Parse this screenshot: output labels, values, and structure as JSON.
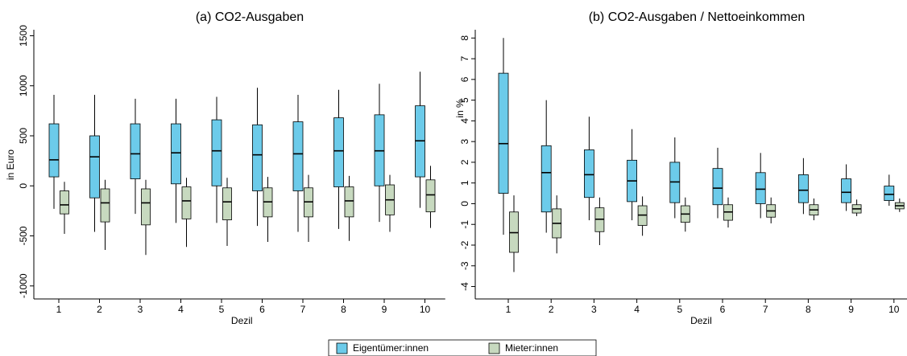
{
  "legend": {
    "entries": [
      {
        "name": "Eigentümer:innen",
        "color": "#6ccbea"
      },
      {
        "name": "Mieter:innen",
        "color": "#c7d9bf"
      }
    ]
  },
  "chart_data": [
    {
      "type": "box",
      "title": "(a) CO2-Ausgaben",
      "xlabel": "Dezil",
      "ylabel": "in Euro",
      "categories": [
        "1",
        "2",
        "3",
        "4",
        "5",
        "6",
        "7",
        "8",
        "9",
        "10"
      ],
      "ylim": [
        -1130,
        1560
      ],
      "yticks": [
        -1000,
        -500,
        0,
        500,
        1000,
        1500
      ],
      "series": [
        {
          "whislo": [
            -230,
            -460,
            -280,
            -370,
            -370,
            -400,
            -460,
            -430,
            -360,
            -220
          ],
          "q1": [
            90,
            -120,
            70,
            20,
            0,
            -50,
            -50,
            -10,
            0,
            90
          ],
          "med": [
            260,
            290,
            320,
            330,
            350,
            310,
            320,
            350,
            350,
            450
          ],
          "q3": [
            620,
            500,
            620,
            620,
            660,
            610,
            640,
            680,
            710,
            800
          ],
          "whishi": [
            910,
            910,
            870,
            870,
            890,
            980,
            910,
            960,
            1020,
            1140
          ]
        },
        {
          "whislo": [
            -480,
            -640,
            -690,
            -610,
            -600,
            -560,
            -560,
            -550,
            -460,
            -420
          ],
          "q1": [
            -280,
            -360,
            -390,
            -330,
            -340,
            -310,
            -310,
            -310,
            -290,
            -260
          ],
          "med": [
            -190,
            -170,
            -170,
            -150,
            -160,
            -160,
            -160,
            -150,
            -140,
            -90
          ],
          "q3": [
            -50,
            -30,
            -30,
            -10,
            -20,
            -20,
            -20,
            -10,
            10,
            60
          ],
          "whishi": [
            40,
            60,
            60,
            80,
            80,
            90,
            110,
            100,
            110,
            200
          ]
        }
      ]
    },
    {
      "type": "box",
      "title": "(b) CO2-Ausgaben / Nettoeinkommen",
      "xlabel": "Dezil",
      "ylabel": "in %",
      "categories": [
        "1",
        "2",
        "3",
        "4",
        "5",
        "6",
        "7",
        "8",
        "9",
        "10"
      ],
      "ylim": [
        -4.6,
        8.4
      ],
      "yticks": [
        -4,
        -3,
        -2,
        -1,
        0,
        1,
        2,
        3,
        4,
        5,
        6,
        7,
        8
      ],
      "series": [
        {
          "whislo": [
            -1.5,
            -1.4,
            -0.8,
            -0.8,
            -0.7,
            -0.7,
            -0.7,
            -0.5,
            -0.35,
            -0.1
          ],
          "q1": [
            0.5,
            -0.4,
            0.3,
            0.1,
            0.05,
            -0.05,
            0,
            0.05,
            0.05,
            0.15
          ],
          "med": [
            2.9,
            1.5,
            1.4,
            1.1,
            1.05,
            0.75,
            0.7,
            0.65,
            0.55,
            0.45
          ],
          "q3": [
            6.3,
            2.8,
            2.6,
            2.1,
            2.0,
            1.7,
            1.5,
            1.4,
            1.2,
            0.85
          ],
          "whishi": [
            8,
            5.0,
            4.2,
            3.6,
            3.2,
            2.7,
            2.45,
            2.2,
            1.9,
            1.4
          ]
        },
        {
          "whislo": [
            -3.3,
            -2.4,
            -2.0,
            -1.55,
            -1.35,
            -1.15,
            -0.95,
            -0.8,
            -0.6,
            -0.4
          ],
          "q1": [
            -2.35,
            -1.65,
            -1.35,
            -1.05,
            -0.9,
            -0.8,
            -0.65,
            -0.55,
            -0.45,
            -0.25
          ],
          "med": [
            -1.4,
            -0.95,
            -0.75,
            -0.55,
            -0.5,
            -0.4,
            -0.35,
            -0.3,
            -0.25,
            -0.1
          ],
          "q3": [
            -0.4,
            -0.25,
            -0.2,
            -0.1,
            -0.1,
            -0.05,
            -0.05,
            -0.05,
            -0.05,
            0.05
          ],
          "whishi": [
            0.4,
            0.4,
            0.3,
            0.35,
            0.3,
            0.3,
            0.3,
            0.25,
            0.2,
            0.25
          ]
        }
      ]
    }
  ]
}
